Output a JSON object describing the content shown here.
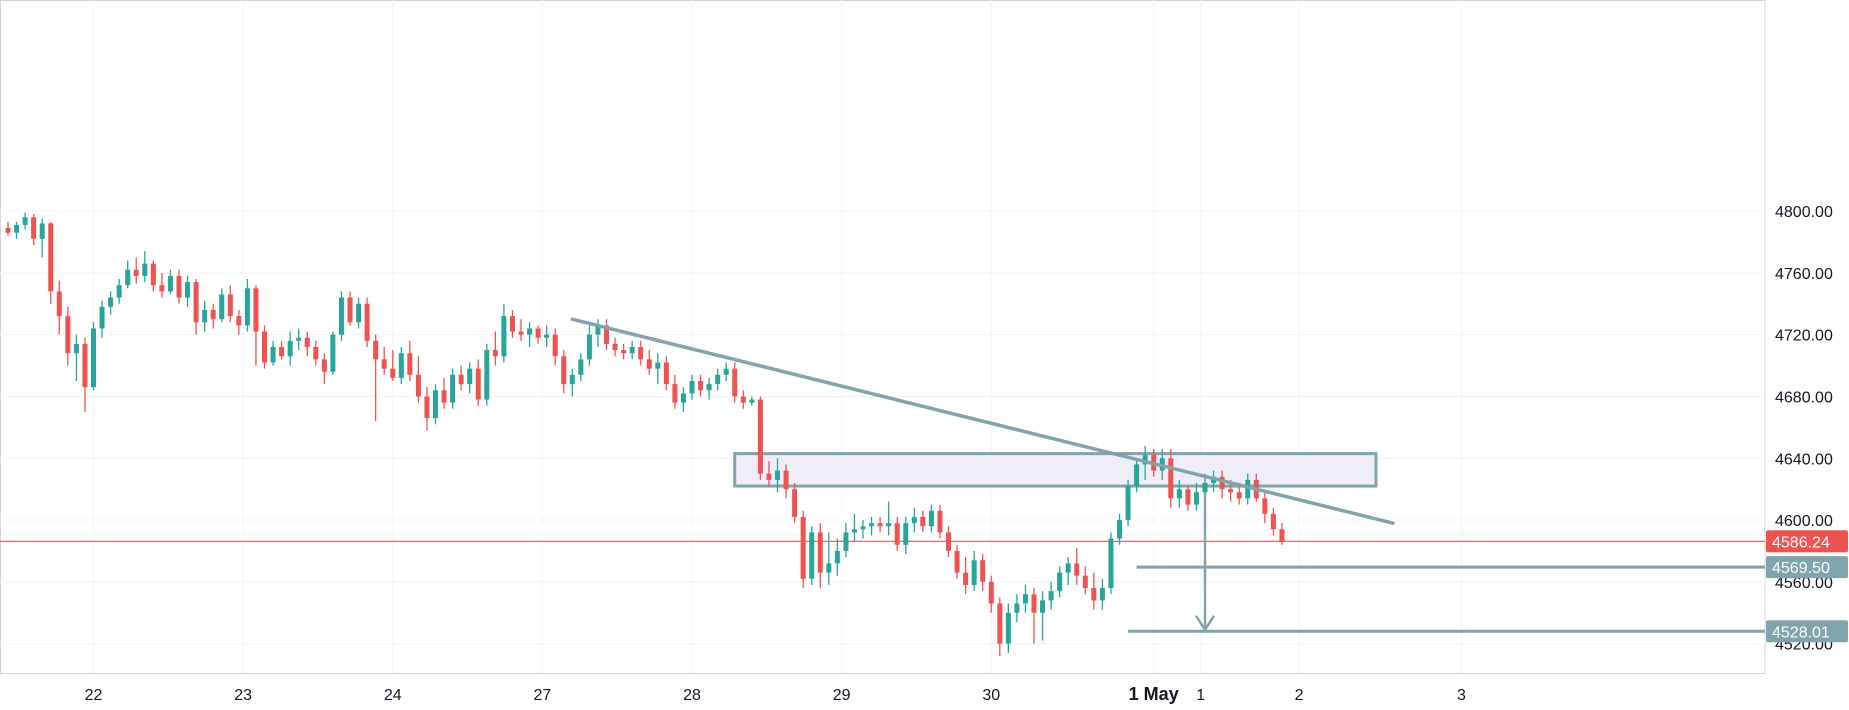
{
  "chart_data": {
    "type": "candlestick",
    "ylim": [
      4490,
      4830
    ],
    "xlim": [
      0,
      190
    ],
    "grid": true,
    "y_ticks": [
      {
        "value": 4800,
        "label": "4800.00"
      },
      {
        "value": 4760,
        "label": "4760.00"
      },
      {
        "value": 4720,
        "label": "4720.00"
      },
      {
        "value": 4680,
        "label": "4680.00"
      },
      {
        "value": 4640,
        "label": "4640.00"
      },
      {
        "value": 4600,
        "label": "4600.00"
      },
      {
        "value": 4560,
        "label": "4560.00"
      },
      {
        "value": 4520,
        "label": "4520.00"
      }
    ],
    "x_ticks": [
      {
        "value": 10,
        "label": "22",
        "bold": false
      },
      {
        "value": 27.5,
        "label": "23",
        "bold": false
      },
      {
        "value": 45,
        "label": "24",
        "bold": false
      },
      {
        "value": 62.5,
        "label": "27",
        "bold": false
      },
      {
        "value": 80,
        "label": "28",
        "bold": false
      },
      {
        "value": 97.5,
        "label": "29",
        "bold": false
      },
      {
        "value": 115,
        "label": "30",
        "bold": false
      },
      {
        "value": 134,
        "label": "1 May",
        "bold": true
      },
      {
        "value": 139.5,
        "label": "1",
        "bold": false
      },
      {
        "value": 151,
        "label": "2",
        "bold": false
      },
      {
        "value": 170,
        "label": "3",
        "bold": false
      }
    ],
    "candles": [
      [
        0,
        4789,
        4793,
        4784,
        4786
      ],
      [
        1,
        4786,
        4793,
        4782,
        4791
      ],
      [
        2,
        4791,
        4799,
        4788,
        4796
      ],
      [
        3,
        4796,
        4798,
        4778,
        4782
      ],
      [
        4,
        4782,
        4795,
        4770,
        4792
      ],
      [
        5,
        4792,
        4793,
        4740,
        4748
      ],
      [
        6,
        4748,
        4755,
        4720,
        4732
      ],
      [
        7,
        4732,
        4738,
        4700,
        4708
      ],
      [
        8,
        4708,
        4720,
        4690,
        4714
      ],
      [
        9,
        4714,
        4718,
        4670,
        4686
      ],
      [
        10,
        4686,
        4728,
        4684,
        4724
      ],
      [
        11,
        4724,
        4742,
        4718,
        4738
      ],
      [
        12,
        4738,
        4748,
        4733,
        4744
      ],
      [
        13,
        4744,
        4756,
        4740,
        4752
      ],
      [
        14,
        4752,
        4768,
        4750,
        4762
      ],
      [
        15,
        4762,
        4770,
        4753,
        4758
      ],
      [
        16,
        4758,
        4774,
        4754,
        4766
      ],
      [
        17,
        4766,
        4768,
        4748,
        4752
      ],
      [
        18,
        4752,
        4760,
        4744,
        4748
      ],
      [
        19,
        4748,
        4762,
        4746,
        4758
      ],
      [
        20,
        4758,
        4762,
        4740,
        4744
      ],
      [
        21,
        4744,
        4758,
        4738,
        4754
      ],
      [
        22,
        4754,
        4756,
        4720,
        4728
      ],
      [
        23,
        4728,
        4742,
        4722,
        4736
      ],
      [
        24,
        4736,
        4740,
        4724,
        4730
      ],
      [
        25,
        4730,
        4750,
        4728,
        4746
      ],
      [
        26,
        4746,
        4752,
        4728,
        4732
      ],
      [
        27,
        4732,
        4736,
        4720,
        4726
      ],
      [
        28,
        4726,
        4756,
        4722,
        4750
      ],
      [
        29,
        4750,
        4752,
        4700,
        4722
      ],
      [
        30,
        4722,
        4726,
        4698,
        4702
      ],
      [
        31,
        4702,
        4716,
        4700,
        4712
      ],
      [
        32,
        4712,
        4716,
        4704,
        4706
      ],
      [
        33,
        4706,
        4722,
        4700,
        4716
      ],
      [
        34,
        4716,
        4724,
        4710,
        4718
      ],
      [
        35,
        4718,
        4722,
        4706,
        4712
      ],
      [
        36,
        4712,
        4716,
        4700,
        4704
      ],
      [
        37,
        4704,
        4708,
        4688,
        4696
      ],
      [
        38,
        4696,
        4722,
        4694,
        4720
      ],
      [
        39,
        4720,
        4748,
        4716,
        4744
      ],
      [
        40,
        4744,
        4748,
        4726,
        4728
      ],
      [
        41,
        4728,
        4744,
        4724,
        4740
      ],
      [
        42,
        4740,
        4744,
        4712,
        4716
      ],
      [
        43,
        4716,
        4720,
        4664,
        4704
      ],
      [
        44,
        4704,
        4712,
        4694,
        4698
      ],
      [
        45,
        4698,
        4710,
        4690,
        4692
      ],
      [
        46,
        4692,
        4712,
        4688,
        4708
      ],
      [
        47,
        4708,
        4716,
        4690,
        4694
      ],
      [
        48,
        4694,
        4706,
        4676,
        4680
      ],
      [
        49,
        4680,
        4686,
        4658,
        4666
      ],
      [
        50,
        4666,
        4688,
        4662,
        4684
      ],
      [
        51,
        4684,
        4692,
        4672,
        4676
      ],
      [
        52,
        4676,
        4698,
        4672,
        4694
      ],
      [
        53,
        4694,
        4700,
        4684,
        4688
      ],
      [
        54,
        4688,
        4702,
        4682,
        4698
      ],
      [
        55,
        4698,
        4704,
        4674,
        4678
      ],
      [
        56,
        4678,
        4714,
        4674,
        4710
      ],
      [
        57,
        4710,
        4722,
        4700,
        4706
      ],
      [
        58,
        4706,
        4740,
        4702,
        4732
      ],
      [
        59,
        4732,
        4736,
        4718,
        4722
      ],
      [
        60,
        4722,
        4730,
        4716,
        4720
      ],
      [
        61,
        4720,
        4728,
        4712,
        4724
      ],
      [
        62,
        4724,
        4726,
        4714,
        4718
      ],
      [
        63,
        4718,
        4726,
        4712,
        4720
      ],
      [
        64,
        4720,
        4724,
        4700,
        4706
      ],
      [
        65,
        4706,
        4710,
        4682,
        4688
      ],
      [
        66,
        4688,
        4698,
        4680,
        4694
      ],
      [
        67,
        4694,
        4708,
        4690,
        4704
      ],
      [
        68,
        4704,
        4728,
        4700,
        4720
      ],
      [
        69,
        4720,
        4730,
        4712,
        4726
      ],
      [
        70,
        4726,
        4730,
        4710,
        4714
      ],
      [
        71,
        4714,
        4718,
        4706,
        4710
      ],
      [
        72,
        4710,
        4714,
        4704,
        4708
      ],
      [
        73,
        4708,
        4716,
        4704,
        4712
      ],
      [
        74,
        4712,
        4716,
        4700,
        4704
      ],
      [
        75,
        4704,
        4710,
        4694,
        4698
      ],
      [
        76,
        4698,
        4708,
        4688,
        4702
      ],
      [
        77,
        4702,
        4706,
        4684,
        4688
      ],
      [
        78,
        4688,
        4694,
        4672,
        4676
      ],
      [
        79,
        4676,
        4686,
        4670,
        4682
      ],
      [
        80,
        4682,
        4694,
        4678,
        4690
      ],
      [
        81,
        4690,
        4694,
        4680,
        4684
      ],
      [
        82,
        4684,
        4692,
        4678,
        4688
      ],
      [
        83,
        4688,
        4698,
        4684,
        4694
      ],
      [
        84,
        4694,
        4702,
        4690,
        4698
      ],
      [
        85,
        4698,
        4702,
        4676,
        4680
      ],
      [
        86,
        4680,
        4684,
        4672,
        4676
      ],
      [
        87,
        4676,
        4680,
        4674,
        4678
      ],
      [
        88,
        4678,
        4680,
        4626,
        4630
      ],
      [
        89,
        4630,
        4638,
        4622,
        4626
      ],
      [
        90,
        4626,
        4640,
        4618,
        4632
      ],
      [
        91,
        4632,
        4636,
        4614,
        4620
      ],
      [
        92,
        4620,
        4624,
        4598,
        4602
      ],
      [
        93,
        4602,
        4606,
        4556,
        4562
      ],
      [
        94,
        4562,
        4596,
        4558,
        4592
      ],
      [
        95,
        4592,
        4598,
        4556,
        4566
      ],
      [
        96,
        4566,
        4592,
        4558,
        4572
      ],
      [
        97,
        4572,
        4588,
        4564,
        4580
      ],
      [
        98,
        4580,
        4598,
        4576,
        4592
      ],
      [
        99,
        4592,
        4604,
        4586,
        4594
      ],
      [
        100,
        4594,
        4600,
        4588,
        4596
      ],
      [
        101,
        4596,
        4602,
        4590,
        4598
      ],
      [
        102,
        4598,
        4602,
        4592,
        4596
      ],
      [
        103,
        4596,
        4612,
        4590,
        4598
      ],
      [
        104,
        4598,
        4602,
        4580,
        4584
      ],
      [
        105,
        4584,
        4602,
        4578,
        4598
      ],
      [
        106,
        4598,
        4608,
        4592,
        4602
      ],
      [
        107,
        4602,
        4606,
        4592,
        4596
      ],
      [
        108,
        4596,
        4610,
        4592,
        4606
      ],
      [
        109,
        4606,
        4610,
        4588,
        4592
      ],
      [
        110,
        4592,
        4596,
        4576,
        4580
      ],
      [
        111,
        4580,
        4584,
        4562,
        4566
      ],
      [
        112,
        4566,
        4576,
        4552,
        4558
      ],
      [
        113,
        4558,
        4580,
        4554,
        4574
      ],
      [
        114,
        4574,
        4578,
        4554,
        4560
      ],
      [
        115,
        4560,
        4564,
        4540,
        4546
      ],
      [
        116,
        4546,
        4550,
        4512,
        4520
      ],
      [
        117,
        4520,
        4546,
        4514,
        4540
      ],
      [
        118,
        4540,
        4552,
        4534,
        4546
      ],
      [
        119,
        4546,
        4558,
        4540,
        4552
      ],
      [
        120,
        4552,
        4556,
        4520,
        4540
      ],
      [
        121,
        4540,
        4554,
        4522,
        4548
      ],
      [
        122,
        4548,
        4560,
        4542,
        4554
      ],
      [
        123,
        4554,
        4570,
        4550,
        4566
      ],
      [
        124,
        4566,
        4576,
        4558,
        4572
      ],
      [
        125,
        4572,
        4582,
        4558,
        4564
      ],
      [
        126,
        4564,
        4570,
        4552,
        4556
      ],
      [
        127,
        4556,
        4566,
        4542,
        4548
      ],
      [
        128,
        4548,
        4562,
        4542,
        4556
      ],
      [
        129,
        4556,
        4592,
        4552,
        4588
      ],
      [
        130,
        4588,
        4604,
        4584,
        4600
      ],
      [
        131,
        4600,
        4626,
        4596,
        4622
      ],
      [
        132,
        4622,
        4640,
        4618,
        4636
      ],
      [
        133,
        4636,
        4648,
        4626,
        4642
      ],
      [
        134,
        4642,
        4646,
        4628,
        4632
      ],
      [
        135,
        4632,
        4646,
        4626,
        4640
      ],
      [
        136,
        4640,
        4646,
        4608,
        4614
      ],
      [
        137,
        4614,
        4626,
        4608,
        4620
      ],
      [
        138,
        4620,
        4622,
        4606,
        4610
      ],
      [
        139,
        4610,
        4624,
        4606,
        4618
      ],
      [
        140,
        4618,
        4630,
        4612,
        4624
      ],
      [
        141,
        4624,
        4632,
        4618,
        4628
      ],
      [
        142,
        4628,
        4632,
        4614,
        4620
      ],
      [
        143,
        4620,
        4626,
        4612,
        4618
      ],
      [
        144,
        4618,
        4624,
        4610,
        4614
      ],
      [
        145,
        4614,
        4630,
        4610,
        4626
      ],
      [
        146,
        4626,
        4630,
        4612,
        4614
      ],
      [
        147,
        4614,
        4618,
        4598,
        4604
      ],
      [
        148,
        4604,
        4608,
        4590,
        4594
      ],
      [
        149,
        4594,
        4598,
        4584,
        4586
      ]
    ],
    "last_price": {
      "value": 4586.24,
      "label": "4586.24"
    },
    "trendline": {
      "from": [
        66,
        4730
      ],
      "to": [
        162,
        4598
      ]
    },
    "resistance_zone": {
      "x_from": 85,
      "x_to": 160,
      "y_from": 4622,
      "y_to": 4643
    },
    "target_levels": [
      {
        "value": 4569.5,
        "label": "4569.50",
        "x_from": 132
      },
      {
        "value": 4528.01,
        "label": "4528.01",
        "x_from": 131
      }
    ],
    "target_arrow": {
      "x": 140,
      "from": 4618,
      "to": 4529
    },
    "colors": {
      "up": "#26a69a",
      "down": "#ef5350",
      "drawing": "#7fa4ac",
      "last_price": "#ef5350",
      "zone_fill": "#eeedf8",
      "grid": "#f0f3fa",
      "axis_text": "#131722"
    }
  }
}
